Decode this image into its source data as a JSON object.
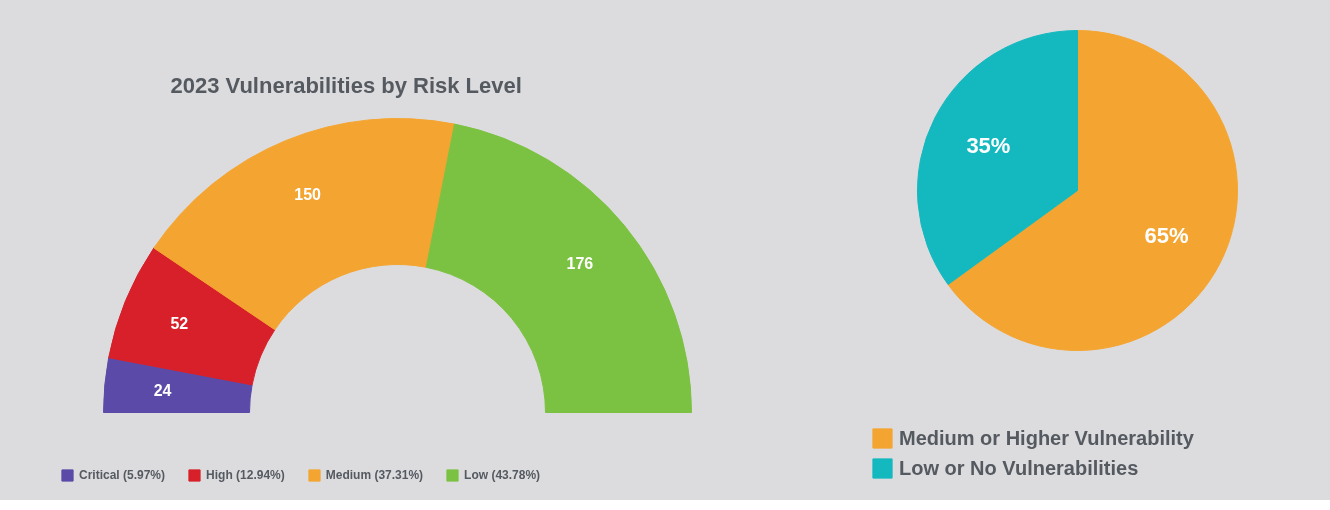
{
  "chart_data": [
    {
      "type": "donut",
      "title": "2023 Vulnerabilities by Risk Level",
      "categories": [
        "Critical (5.97%)",
        "High (12.94%)",
        "Medium (37.31%)",
        "Low (43.78%)"
      ],
      "values": [
        24,
        52,
        150,
        176
      ],
      "colors": [
        "#5b4aa8",
        "#d7202a",
        "#f4a531",
        "#7cc242"
      ],
      "data_labels": true,
      "legend": "bottom"
    },
    {
      "type": "pie",
      "categories": [
        "Medium or Higher Vulnerability",
        "Low or No Vulnerabilities"
      ],
      "values": [
        65,
        35
      ],
      "colors": [
        "#f4a531",
        "#14b9bf"
      ],
      "value_labels": [
        "65%",
        "35%"
      ],
      "legend": "bottom"
    }
  ]
}
